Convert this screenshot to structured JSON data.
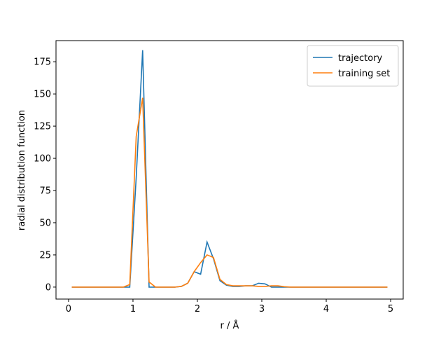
{
  "chart_data": {
    "type": "line",
    "xlabel": "r / Å",
    "ylabel": "radial distribution function",
    "x": [
      0.05,
      0.15,
      0.25,
      0.35,
      0.45,
      0.55,
      0.65,
      0.75,
      0.85,
      0.95,
      1.05,
      1.15,
      1.25,
      1.35,
      1.45,
      1.55,
      1.65,
      1.75,
      1.85,
      1.95,
      2.05,
      2.15,
      2.25,
      2.35,
      2.45,
      2.55,
      2.65,
      2.75,
      2.85,
      2.95,
      3.05,
      3.15,
      3.25,
      3.35,
      3.45,
      3.55,
      3.65,
      3.75,
      3.85,
      3.95,
      4.05,
      4.15,
      4.25,
      4.35,
      4.45,
      4.55,
      4.65,
      4.75,
      4.85,
      4.95
    ],
    "series": [
      {
        "name": "trajectory",
        "color": "#1f77b4",
        "values": [
          0,
          0,
          0,
          0,
          0,
          0,
          0,
          0,
          0,
          0,
          85,
          184,
          0,
          0,
          0,
          0,
          0,
          0.5,
          3,
          12,
          10,
          35,
          22,
          5,
          1.5,
          0.5,
          0.5,
          1,
          1,
          3,
          2.5,
          0,
          0,
          0,
          0,
          0,
          0,
          0,
          0,
          0,
          0,
          0,
          0,
          0,
          0,
          0,
          0,
          0,
          0,
          0
        ]
      },
      {
        "name": "training set",
        "color": "#ff7f0e",
        "values": [
          0,
          0,
          0,
          0,
          0,
          0,
          0,
          0,
          0,
          2,
          117,
          147,
          4,
          0,
          0,
          0,
          0,
          0.5,
          3,
          12,
          19,
          25,
          23,
          6,
          2,
          1,
          1,
          1,
          1,
          0.5,
          0.5,
          1,
          1,
          0.3,
          0,
          0,
          0,
          0,
          0,
          0,
          0,
          0,
          0,
          0,
          0,
          0,
          0,
          0,
          0,
          0
        ]
      }
    ],
    "xlim": [
      -0.195,
      5.195
    ],
    "xticks": [
      0,
      1,
      2,
      3,
      4,
      5
    ],
    "ylim": [
      -9.3,
      191.4
    ],
    "yticks": [
      0,
      25,
      50,
      75,
      100,
      125,
      150,
      175
    ],
    "grid": false,
    "legend": "upper right"
  }
}
